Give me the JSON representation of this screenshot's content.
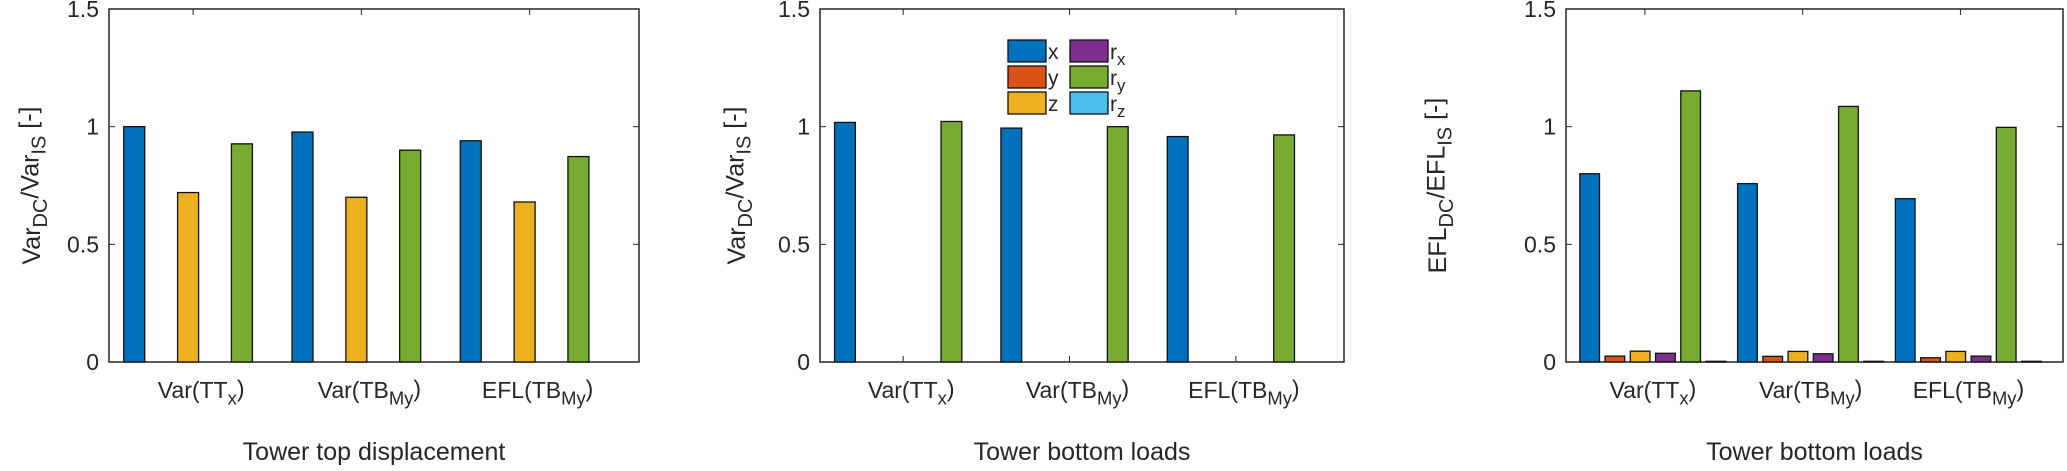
{
  "series_colors": {
    "x": "#0072BD",
    "y": "#D95319",
    "z": "#EDB120",
    "r_x": "#7E2F8E",
    "r_y": "#77AC30",
    "r_z": "#4DBEEE"
  },
  "legend": [
    {
      "key": "x",
      "label": [
        {
          "t": "x"
        }
      ]
    },
    {
      "key": "y",
      "label": [
        {
          "t": "y"
        }
      ]
    },
    {
      "key": "z",
      "label": [
        {
          "t": "z"
        }
      ]
    },
    {
      "key": "r_x",
      "label": [
        {
          "t": "r"
        },
        {
          "t": "x",
          "sub": true
        }
      ]
    },
    {
      "key": "r_y",
      "label": [
        {
          "t": "r"
        },
        {
          "t": "y",
          "sub": true
        }
      ]
    },
    {
      "key": "r_z",
      "label": [
        {
          "t": "r"
        },
        {
          "t": "z",
          "sub": true
        }
      ]
    }
  ],
  "chart_data": [
    {
      "type": "bar",
      "categories": [
        [
          {
            "t": "Var(TT"
          },
          {
            "t": "x",
            "sub": true
          },
          {
            "t": ")"
          }
        ],
        [
          {
            "t": "Var(TB"
          },
          {
            "t": "My",
            "sub": true
          },
          {
            "t": ")"
          }
        ],
        [
          {
            "t": "EFL(TB"
          },
          {
            "t": "My",
            "sub": true
          },
          {
            "t": ")"
          }
        ]
      ],
      "xlabel": [
        {
          "t": "Tower top displacement"
        }
      ],
      "ylabel": [
        {
          "t": "Var"
        },
        {
          "t": "DC",
          "sub": true
        },
        {
          "t": "/Var"
        },
        {
          "t": "IS",
          "sub": true
        },
        {
          "t": " [-]"
        }
      ],
      "ylim": [
        0,
        1.5
      ],
      "yticks": [
        "0",
        "0.5",
        "1",
        "1.5"
      ],
      "grid": false,
      "series": [
        {
          "key": "x",
          "values": [
            1.0,
            0.977,
            0.94
          ]
        },
        {
          "key": "y",
          "values": [
            0,
            0,
            0
          ]
        },
        {
          "key": "z",
          "values": [
            0.72,
            0.7,
            0.68
          ]
        },
        {
          "key": "r_x",
          "values": [
            0,
            0,
            0
          ]
        },
        {
          "key": "r_y",
          "values": [
            0.927,
            0.9,
            0.873
          ]
        },
        {
          "key": "r_z",
          "values": [
            0,
            0,
            0
          ]
        }
      ]
    },
    {
      "type": "bar",
      "categories": [
        [
          {
            "t": "Var(TT"
          },
          {
            "t": "x",
            "sub": true
          },
          {
            "t": ")"
          }
        ],
        [
          {
            "t": "Var(TB"
          },
          {
            "t": "My",
            "sub": true
          },
          {
            "t": ")"
          }
        ],
        [
          {
            "t": "EFL(TB"
          },
          {
            "t": "My",
            "sub": true
          },
          {
            "t": ")"
          }
        ]
      ],
      "xlabel": [
        {
          "t": "Tower bottom loads"
        }
      ],
      "ylabel": [
        {
          "t": "Var"
        },
        {
          "t": "DC",
          "sub": true
        },
        {
          "t": "/Var"
        },
        {
          "t": "IS",
          "sub": true
        },
        {
          "t": " [-]"
        }
      ],
      "ylim": [
        0,
        1.5
      ],
      "yticks": [
        "0",
        "0.5",
        "1",
        "1.5"
      ],
      "grid": false,
      "legend": "top-center",
      "series": [
        {
          "key": "x",
          "values": [
            1.018,
            0.994,
            0.958
          ]
        },
        {
          "key": "y",
          "values": [
            0,
            0,
            0
          ]
        },
        {
          "key": "z",
          "values": [
            0,
            0,
            0
          ]
        },
        {
          "key": "r_x",
          "values": [
            0,
            0,
            0
          ]
        },
        {
          "key": "r_y",
          "values": [
            1.022,
            1.0,
            0.965
          ]
        },
        {
          "key": "r_z",
          "values": [
            0,
            0,
            0
          ]
        }
      ]
    },
    {
      "type": "bar",
      "categories": [
        [
          {
            "t": "Var(TT"
          },
          {
            "t": "x",
            "sub": true
          },
          {
            "t": ")"
          }
        ],
        [
          {
            "t": "Var(TB"
          },
          {
            "t": "My",
            "sub": true
          },
          {
            "t": ")"
          }
        ],
        [
          {
            "t": "EFL(TB"
          },
          {
            "t": "My",
            "sub": true
          },
          {
            "t": ")"
          }
        ]
      ],
      "xlabel": [
        {
          "t": "Tower bottom loads"
        }
      ],
      "ylabel": [
        {
          "t": "EFL"
        },
        {
          "t": "DC",
          "sub": true
        },
        {
          "t": "/EFL"
        },
        {
          "t": "IS",
          "sub": true
        },
        {
          "t": " [-]"
        }
      ],
      "ylim": [
        0,
        1.5
      ],
      "yticks": [
        "0",
        "0.5",
        "1",
        "1.5"
      ],
      "grid": false,
      "series": [
        {
          "key": "x",
          "values": [
            0.8,
            0.758,
            0.694
          ]
        },
        {
          "key": "y",
          "values": [
            0.025,
            0.024,
            0.018
          ]
        },
        {
          "key": "z",
          "values": [
            0.046,
            0.045,
            0.045
          ]
        },
        {
          "key": "r_x",
          "values": [
            0.037,
            0.035,
            0.025
          ]
        },
        {
          "key": "r_y",
          "values": [
            1.152,
            1.086,
            0.997
          ]
        },
        {
          "key": "r_z",
          "values": [
            0.003,
            0.003,
            0.003
          ]
        }
      ]
    }
  ]
}
